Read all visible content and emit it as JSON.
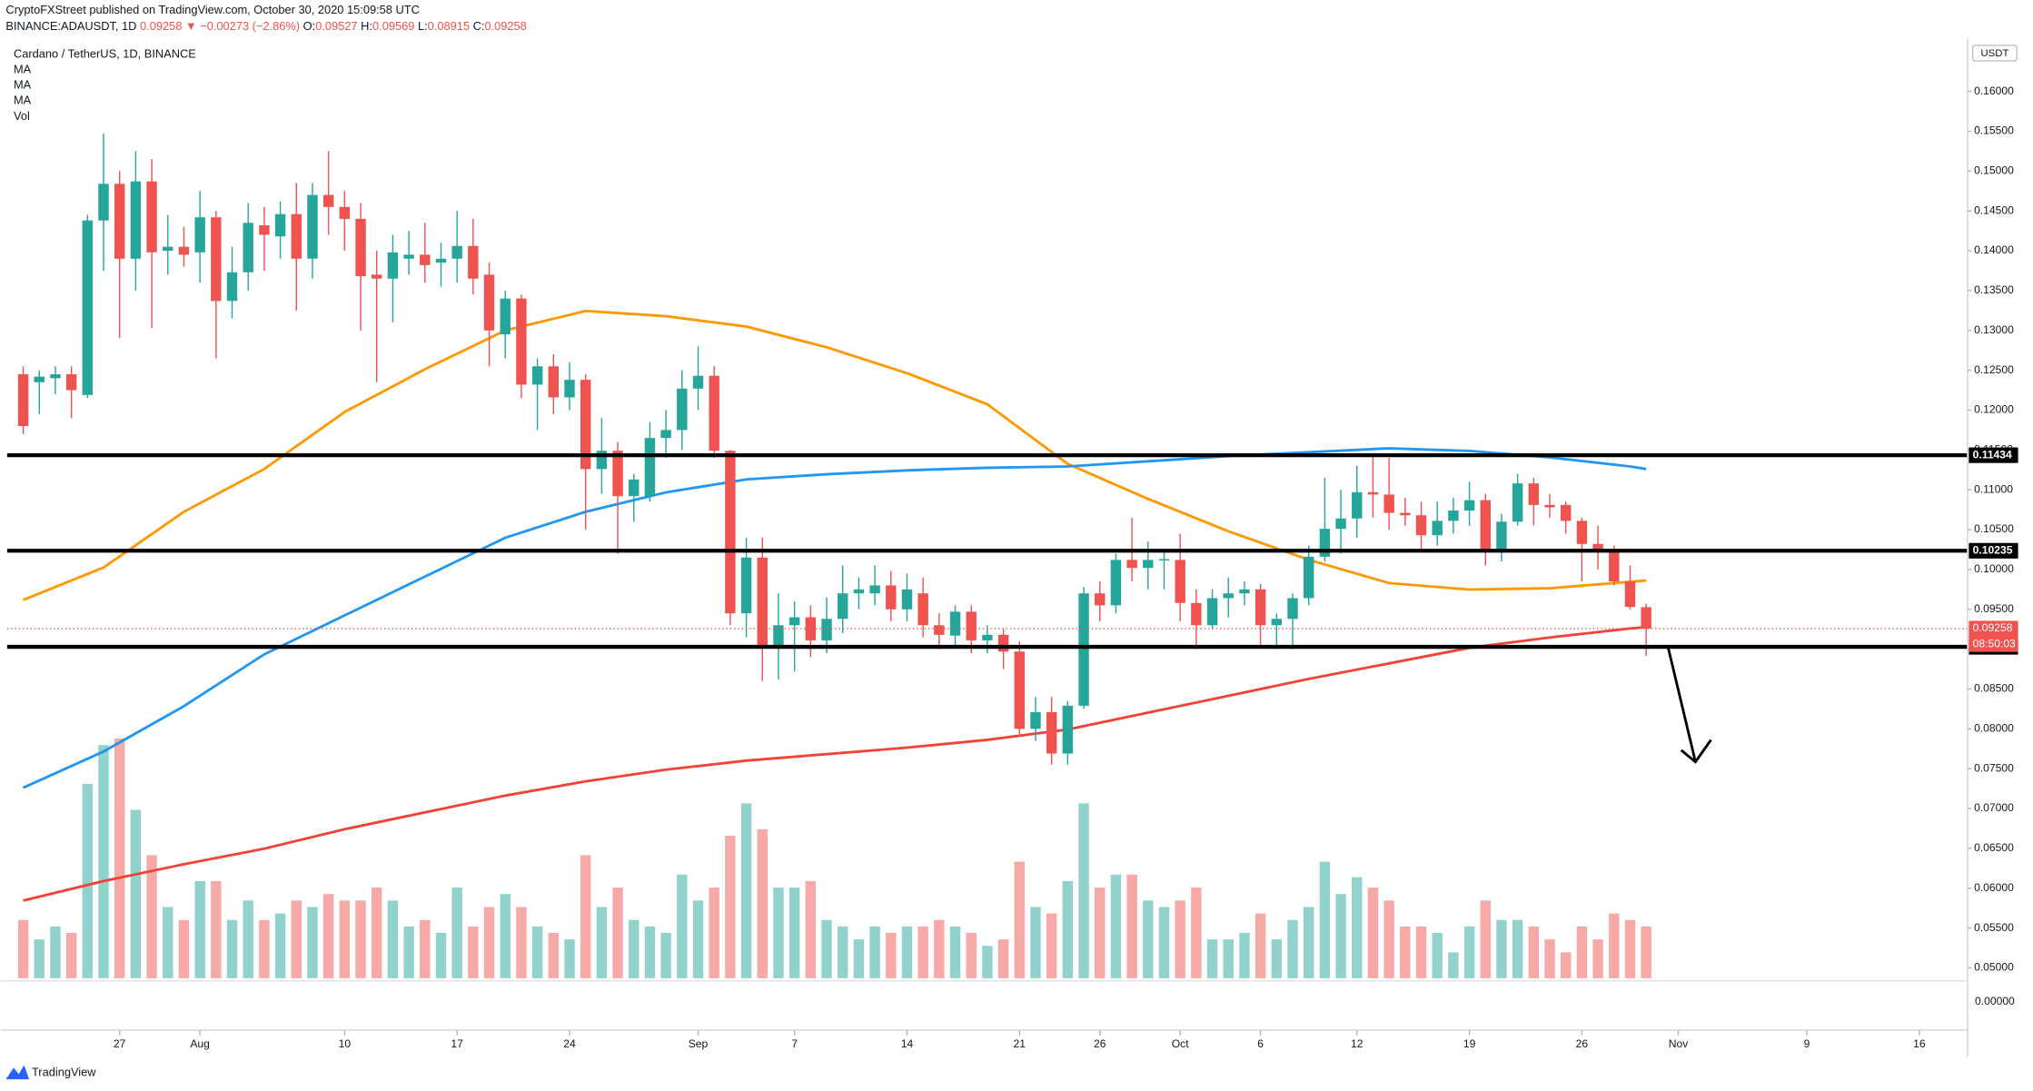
{
  "header": {
    "published": "CryptoFXStreet published on TradingView.com, October 30, 2020 15:09:58 UTC",
    "symbol": "BINANCE:ADAUSDT, 1D",
    "last": "0.09258",
    "change": "▼ −0.00273 (−2.86%)",
    "ohlc": [
      {
        "label": "O:",
        "value": "0.09527"
      },
      {
        "label": "H:",
        "value": "0.09569"
      },
      {
        "label": "L:",
        "value": "0.08915"
      },
      {
        "label": "C:",
        "value": "0.09258"
      }
    ]
  },
  "footer": {
    "brand": "TradingView"
  },
  "chart_data": {
    "type": "candlestick",
    "title": "Cardano / TetherUS, 1D, BINANCE",
    "currency": "USDT",
    "up_color": "#26a69a",
    "down_color": "#ef5350",
    "volume_name": "Vol",
    "volume_scale_label": "0.00000",
    "ylim": [
      0.04837,
      0.16659
    ],
    "xlim": [
      "2020-07-20",
      "2020-11-19"
    ],
    "yticks": [
      {
        "value": 0.05,
        "label": "0.05000"
      },
      {
        "value": 0.055,
        "label": "0.05500"
      },
      {
        "value": 0.06,
        "label": "0.06000"
      },
      {
        "value": 0.065,
        "label": "0.06500"
      },
      {
        "value": 0.07,
        "label": "0.07000"
      },
      {
        "value": 0.075,
        "label": "0.07500"
      },
      {
        "value": 0.08,
        "label": "0.08000"
      },
      {
        "value": 0.085,
        "label": "0.08500"
      },
      {
        "value": 0.09,
        "label": "0.09000"
      },
      {
        "value": 0.095,
        "label": "0.09500"
      },
      {
        "value": 0.1,
        "label": "0.10000"
      },
      {
        "value": 0.105,
        "label": "0.10500"
      },
      {
        "value": 0.11,
        "label": "0.11000"
      },
      {
        "value": 0.115,
        "label": "0.11500"
      },
      {
        "value": 0.12,
        "label": "0.12000"
      },
      {
        "value": 0.125,
        "label": "0.12500"
      },
      {
        "value": 0.13,
        "label": "0.13000"
      },
      {
        "value": 0.135,
        "label": "0.13500"
      },
      {
        "value": 0.14,
        "label": "0.14000"
      },
      {
        "value": 0.145,
        "label": "0.14500"
      },
      {
        "value": 0.15,
        "label": "0.15000"
      },
      {
        "value": 0.155,
        "label": "0.15500"
      },
      {
        "value": 0.16,
        "label": "0.16000"
      }
    ],
    "xticks": [
      {
        "value": "2020-07-27",
        "label": "27"
      },
      {
        "value": "2020-08-01",
        "label": "Aug"
      },
      {
        "value": "2020-08-10",
        "label": "10"
      },
      {
        "value": "2020-08-17",
        "label": "17"
      },
      {
        "value": "2020-08-24",
        "label": "24"
      },
      {
        "value": "2020-09-01",
        "label": "Sep"
      },
      {
        "value": "2020-09-07",
        "label": "7"
      },
      {
        "value": "2020-09-14",
        "label": "14"
      },
      {
        "value": "2020-09-21",
        "label": "21"
      },
      {
        "value": "2020-09-26",
        "label": "26"
      },
      {
        "value": "2020-10-01",
        "label": "Oct"
      },
      {
        "value": "2020-10-06",
        "label": "6"
      },
      {
        "value": "2020-10-12",
        "label": "12"
      },
      {
        "value": "2020-10-19",
        "label": "19"
      },
      {
        "value": "2020-10-26",
        "label": "26"
      },
      {
        "value": "2020-11-01",
        "label": "Nov"
      },
      {
        "value": "2020-11-09",
        "label": "9"
      },
      {
        "value": "2020-11-16",
        "label": "16"
      }
    ],
    "levels": [
      0.11434,
      0.10235,
      0.09029
    ],
    "level_color": "#000000",
    "last_price": 0.09258,
    "countdown": "08:50:03",
    "x": [
      "2020-07-21",
      "2020-07-22",
      "2020-07-23",
      "2020-07-24",
      "2020-07-25",
      "2020-07-26",
      "2020-07-27",
      "2020-07-28",
      "2020-07-29",
      "2020-07-30",
      "2020-07-31",
      "2020-08-01",
      "2020-08-02",
      "2020-08-03",
      "2020-08-04",
      "2020-08-05",
      "2020-08-06",
      "2020-08-07",
      "2020-08-08",
      "2020-08-09",
      "2020-08-10",
      "2020-08-11",
      "2020-08-12",
      "2020-08-13",
      "2020-08-14",
      "2020-08-15",
      "2020-08-16",
      "2020-08-17",
      "2020-08-18",
      "2020-08-19",
      "2020-08-20",
      "2020-08-21",
      "2020-08-22",
      "2020-08-23",
      "2020-08-24",
      "2020-08-25",
      "2020-08-26",
      "2020-08-27",
      "2020-08-28",
      "2020-08-29",
      "2020-08-30",
      "2020-08-31",
      "2020-09-01",
      "2020-09-02",
      "2020-09-03",
      "2020-09-04",
      "2020-09-05",
      "2020-09-06",
      "2020-09-07",
      "2020-09-08",
      "2020-09-09",
      "2020-09-10",
      "2020-09-11",
      "2020-09-12",
      "2020-09-13",
      "2020-09-14",
      "2020-09-15",
      "2020-09-16",
      "2020-09-17",
      "2020-09-18",
      "2020-09-19",
      "2020-09-20",
      "2020-09-21",
      "2020-09-22",
      "2020-09-23",
      "2020-09-24",
      "2020-09-25",
      "2020-09-26",
      "2020-09-27",
      "2020-09-28",
      "2020-09-29",
      "2020-09-30",
      "2020-10-01",
      "2020-10-02",
      "2020-10-03",
      "2020-10-04",
      "2020-10-05",
      "2020-10-06",
      "2020-10-07",
      "2020-10-08",
      "2020-10-09",
      "2020-10-10",
      "2020-10-11",
      "2020-10-12",
      "2020-10-13",
      "2020-10-14",
      "2020-10-15",
      "2020-10-16",
      "2020-10-17",
      "2020-10-18",
      "2020-10-19",
      "2020-10-20",
      "2020-10-21",
      "2020-10-22",
      "2020-10-23",
      "2020-10-24",
      "2020-10-25",
      "2020-10-26",
      "2020-10-27",
      "2020-10-28",
      "2020-10-29",
      "2020-10-30"
    ],
    "open": [
      0.1245,
      0.1235,
      0.124,
      0.1245,
      0.1219,
      0.1438,
      0.1484,
      0.139,
      0.1487,
      0.14,
      0.1405,
      0.1398,
      0.1442,
      0.1337,
      0.1373,
      0.1432,
      0.1418,
      0.1446,
      0.139,
      0.147,
      0.1455,
      0.144,
      0.137,
      0.1365,
      0.139,
      0.1395,
      0.1385,
      0.139,
      0.1406,
      0.137,
      0.1295,
      0.134,
      0.1232,
      0.1255,
      0.1216,
      0.1238,
      0.1126,
      0.1149,
      0.1092,
      0.1092,
      0.1165,
      0.1175,
      0.1227,
      0.1243,
      0.1149,
      0.0945,
      0.1015,
      0.0902,
      0.093,
      0.094,
      0.0911,
      0.0938,
      0.097,
      0.097,
      0.098,
      0.095,
      0.097,
      0.093,
      0.0917,
      0.0947,
      0.0911,
      0.0918,
      0.0897,
      0.08,
      0.0821,
      0.0769,
      0.0829,
      0.097,
      0.0955,
      0.1012,
      0.1002,
      0.1012,
      0.1012,
      0.0958,
      0.093,
      0.0964,
      0.097,
      0.0975,
      0.093,
      0.0938,
      0.0964,
      0.1016,
      0.1051,
      0.1064,
      0.1097,
      0.1094,
      0.1071,
      0.1068,
      0.1043,
      0.1061,
      0.1074,
      0.1087,
      0.1023,
      0.106,
      0.1108,
      0.1081,
      0.1081,
      0.1061,
      0.1032,
      0.1023,
      0.0985,
      0.09527
    ],
    "high": [
      0.1255,
      0.125,
      0.1255,
      0.1255,
      0.1445,
      0.1547,
      0.15,
      0.1525,
      0.1515,
      0.1445,
      0.143,
      0.1475,
      0.145,
      0.1405,
      0.146,
      0.1455,
      0.1462,
      0.1485,
      0.1485,
      0.1525,
      0.1475,
      0.146,
      0.14,
      0.142,
      0.1425,
      0.1435,
      0.141,
      0.145,
      0.144,
      0.1385,
      0.135,
      0.1345,
      0.1265,
      0.127,
      0.126,
      0.1245,
      0.119,
      0.116,
      0.112,
      0.1185,
      0.12,
      0.125,
      0.128,
      0.1255,
      0.115,
      0.104,
      0.104,
      0.097,
      0.096,
      0.0955,
      0.0965,
      0.1005,
      0.099,
      0.1005,
      0.0998,
      0.0995,
      0.099,
      0.0945,
      0.0955,
      0.0955,
      0.093,
      0.0925,
      0.091,
      0.084,
      0.084,
      0.0835,
      0.0978,
      0.0985,
      0.102,
      0.1065,
      0.1035,
      0.1025,
      0.1045,
      0.0975,
      0.0975,
      0.099,
      0.0985,
      0.0982,
      0.0945,
      0.097,
      0.103,
      0.1115,
      0.11,
      0.113,
      0.1145,
      0.114,
      0.109,
      0.1085,
      0.1085,
      0.109,
      0.111,
      0.1095,
      0.107,
      0.112,
      0.1115,
      0.1095,
      0.1085,
      0.1065,
      0.1055,
      0.103,
      0.1005,
      0.09569
    ],
    "low": [
      0.117,
      0.1195,
      0.122,
      0.119,
      0.1215,
      0.1375,
      0.129,
      0.135,
      0.1303,
      0.137,
      0.138,
      0.136,
      0.1265,
      0.1315,
      0.135,
      0.1375,
      0.139,
      0.1325,
      0.1365,
      0.142,
      0.14,
      0.13,
      0.1235,
      0.131,
      0.137,
      0.136,
      0.1355,
      0.136,
      0.1345,
      0.1255,
      0.1265,
      0.1215,
      0.1175,
      0.1195,
      0.12,
      0.105,
      0.1095,
      0.102,
      0.106,
      0.1085,
      0.114,
      0.115,
      0.12,
      0.114,
      0.093,
      0.0915,
      0.086,
      0.0862,
      0.0872,
      0.089,
      0.0895,
      0.092,
      0.095,
      0.0955,
      0.0935,
      0.0935,
      0.0915,
      0.09,
      0.0903,
      0.0895,
      0.0895,
      0.0875,
      0.079,
      0.0785,
      0.0755,
      0.0755,
      0.0825,
      0.0935,
      0.0945,
      0.0985,
      0.0975,
      0.0975,
      0.0935,
      0.09,
      0.0925,
      0.094,
      0.0955,
      0.0905,
      0.09,
      0.09,
      0.0955,
      0.101,
      0.102,
      0.104,
      0.1065,
      0.105,
      0.1055,
      0.1025,
      0.103,
      0.1045,
      0.1055,
      0.1005,
      0.101,
      0.1055,
      0.1055,
      0.1065,
      0.1045,
      0.0985,
      0.1,
      0.098,
      0.095,
      0.08915
    ],
    "close": [
      0.118,
      0.1242,
      0.1245,
      0.1225,
      0.1438,
      0.1484,
      0.139,
      0.1487,
      0.1398,
      0.1405,
      0.1395,
      0.1442,
      0.1337,
      0.1373,
      0.1435,
      0.142,
      0.1446,
      0.139,
      0.147,
      0.1455,
      0.144,
      0.1368,
      0.1365,
      0.1398,
      0.1395,
      0.1382,
      0.139,
      0.1406,
      0.1365,
      0.13,
      0.134,
      0.1232,
      0.1255,
      0.1216,
      0.1238,
      0.1126,
      0.1149,
      0.1092,
      0.1113,
      0.1165,
      0.1175,
      0.1227,
      0.1243,
      0.1149,
      0.0945,
      0.1015,
      0.0902,
      0.093,
      0.094,
      0.0911,
      0.0938,
      0.097,
      0.0975,
      0.098,
      0.095,
      0.0975,
      0.093,
      0.0918,
      0.0947,
      0.0911,
      0.0918,
      0.0897,
      0.08,
      0.0821,
      0.0769,
      0.0829,
      0.097,
      0.0955,
      0.1012,
      0.1002,
      0.1012,
      0.1013,
      0.0958,
      0.093,
      0.0964,
      0.097,
      0.0975,
      0.093,
      0.0938,
      0.0964,
      0.1016,
      0.1051,
      0.1064,
      0.1097,
      0.1094,
      0.1071,
      0.1068,
      0.1043,
      0.1061,
      0.1074,
      0.1087,
      0.1023,
      0.106,
      0.1108,
      0.1081,
      0.1078,
      0.1061,
      0.1032,
      0.1023,
      0.0985,
      0.0953,
      0.09258
    ],
    "volume": [
      45,
      30,
      40,
      35,
      150,
      180,
      185,
      130,
      95,
      55,
      45,
      75,
      75,
      45,
      60,
      45,
      50,
      60,
      55,
      65,
      60,
      60,
      70,
      60,
      40,
      45,
      35,
      70,
      40,
      55,
      65,
      55,
      40,
      35,
      30,
      95,
      55,
      70,
      45,
      40,
      35,
      80,
      60,
      70,
      110,
      135,
      115,
      70,
      70,
      75,
      45,
      40,
      30,
      40,
      35,
      40,
      40,
      45,
      40,
      35,
      25,
      30,
      90,
      55,
      50,
      75,
      135,
      70,
      80,
      80,
      60,
      55,
      60,
      70,
      30,
      30,
      35,
      50,
      30,
      45,
      55,
      90,
      65,
      78,
      70,
      60,
      40,
      40,
      35,
      20,
      40,
      60,
      45,
      45,
      40,
      30,
      20,
      40,
      30,
      50,
      45,
      40
    ],
    "moving_averages": [
      {
        "name": "MA",
        "color": "#ff9800",
        "x": [
          "2020-07-21",
          "2020-07-26",
          "2020-07-31",
          "2020-08-05",
          "2020-08-10",
          "2020-08-15",
          "2020-08-20",
          "2020-08-25",
          "2020-08-30",
          "2020-09-04",
          "2020-09-09",
          "2020-09-14",
          "2020-09-19",
          "2020-09-24",
          "2020-09-29",
          "2020-10-04",
          "2020-10-09",
          "2020-10-14",
          "2020-10-19",
          "2020-10-24",
          "2020-10-29",
          "2020-10-30"
        ],
        "values": [
          0.09618,
          0.10024,
          0.10724,
          0.1126,
          0.11976,
          0.12512,
          0.13,
          0.13244,
          0.13179,
          0.13049,
          0.12789,
          0.12463,
          0.12073,
          0.11325,
          0.10886,
          0.1048,
          0.10122,
          0.09829,
          0.09748,
          0.09764,
          0.09846,
          0.09862
        ]
      },
      {
        "name": "MA",
        "color": "#2196f3",
        "x": [
          "2020-07-21",
          "2020-07-26",
          "2020-07-31",
          "2020-08-05",
          "2020-08-10",
          "2020-08-15",
          "2020-08-20",
          "2020-08-25",
          "2020-08-30",
          "2020-09-04",
          "2020-09-09",
          "2020-09-14",
          "2020-09-19",
          "2020-09-24",
          "2020-09-29",
          "2020-10-04",
          "2020-10-09",
          "2020-10-14",
          "2020-10-19",
          "2020-10-24",
          "2020-10-29",
          "2020-10-30"
        ],
        "values": [
          0.0726,
          0.07715,
          0.08285,
          0.08935,
          0.09423,
          0.09911,
          0.10398,
          0.10724,
          0.10967,
          0.1113,
          0.11195,
          0.11244,
          0.11276,
          0.11293,
          0.11358,
          0.11423,
          0.11472,
          0.1152,
          0.11488,
          0.11407,
          0.11293,
          0.1126
        ]
      },
      {
        "name": "MA",
        "color": "#f44336",
        "x": [
          "2020-07-21",
          "2020-07-26",
          "2020-07-31",
          "2020-08-05",
          "2020-08-10",
          "2020-08-15",
          "2020-08-20",
          "2020-08-25",
          "2020-08-30",
          "2020-09-04",
          "2020-09-09",
          "2020-09-14",
          "2020-09-19",
          "2020-09-24",
          "2020-09-29",
          "2020-10-04",
          "2020-10-09",
          "2020-10-14",
          "2020-10-19",
          "2020-10-24",
          "2020-10-29",
          "2020-10-30"
        ],
        "values": [
          0.05846,
          0.06089,
          0.06301,
          0.06496,
          0.0674,
          0.06951,
          0.07163,
          0.07341,
          0.07488,
          0.07602,
          0.07683,
          0.07764,
          0.07862,
          0.07992,
          0.08203,
          0.08415,
          0.08626,
          0.08821,
          0.09016,
          0.09146,
          0.0926,
          0.09276
        ]
      }
    ]
  }
}
